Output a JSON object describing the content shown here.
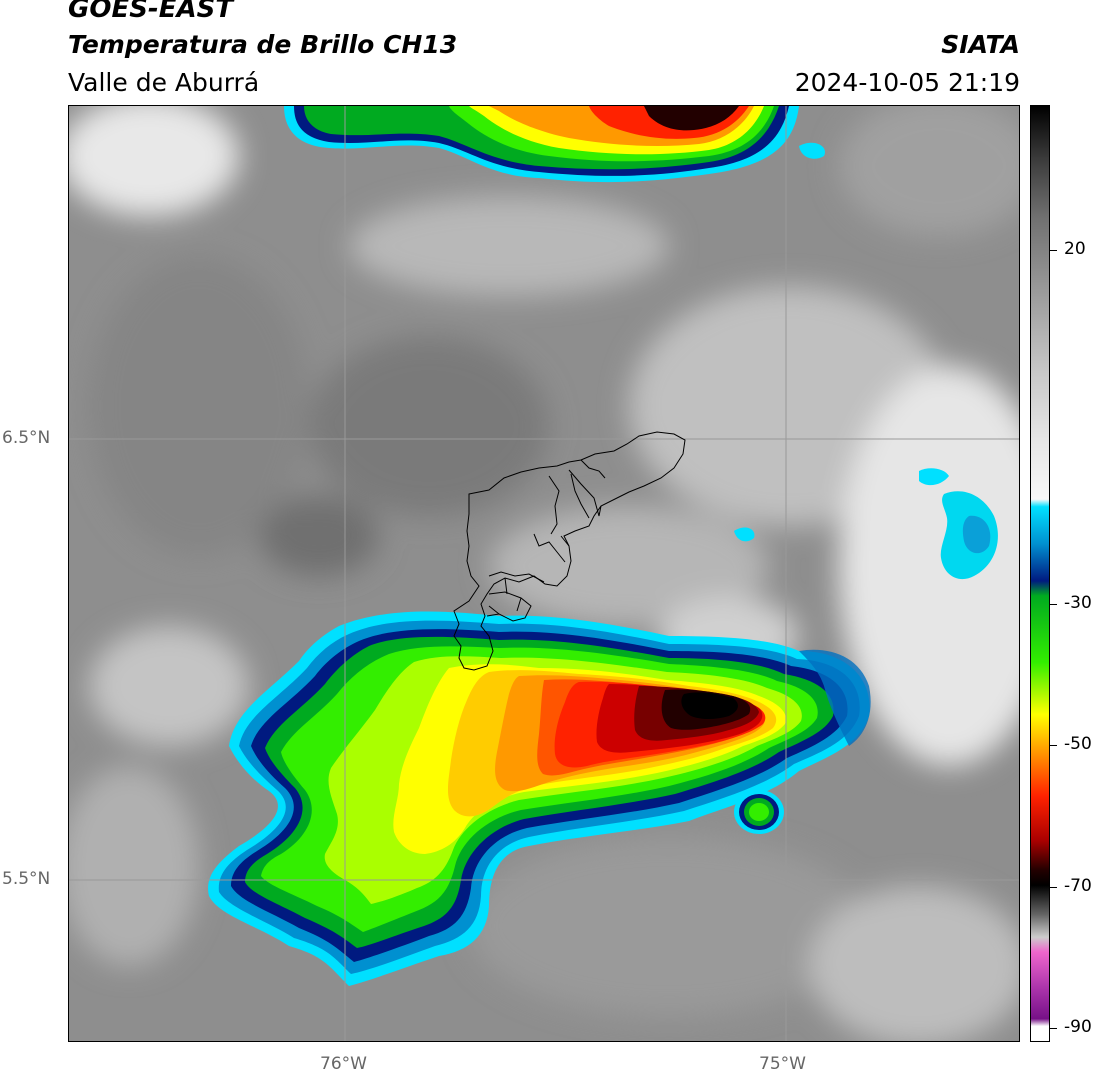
{
  "header": {
    "satellite": "GOES-EAST",
    "product": "Temperatura de Brillo CH13",
    "region": "Valle de Aburrá",
    "organization": "SIATA",
    "timestamp": "2024-10-05 21:19"
  },
  "map": {
    "lat_labels": [
      "6.5°N",
      "5.5°N"
    ],
    "lon_labels": [
      "76°W",
      "75°W"
    ],
    "gridlines": true,
    "background_colors": {
      "warm_surface": "#8a8a8a",
      "mid_cloud": "#c8c8c8",
      "grid": "#999999"
    }
  },
  "colorbar": {
    "tick_labels": [
      "20",
      "-30",
      "-50",
      "-70",
      "-90"
    ],
    "stops": [
      {
        "v": 35,
        "c": "#000000"
      },
      {
        "v": 28,
        "c": "#3a3a3a"
      },
      {
        "v": 20,
        "c": "#707070"
      },
      {
        "v": 10,
        "c": "#9a9a9a"
      },
      {
        "v": 0,
        "c": "#c4c4c4"
      },
      {
        "v": -10,
        "c": "#e6e6e6"
      },
      {
        "v": -18,
        "c": "#f8f8f8"
      },
      {
        "v": -19,
        "c": "#00e0ff"
      },
      {
        "v": -24,
        "c": "#0090d0"
      },
      {
        "v": -29,
        "c": "#001a80"
      },
      {
        "v": -31,
        "c": "#00aa20"
      },
      {
        "v": -40,
        "c": "#33ee00"
      },
      {
        "v": -47,
        "c": "#ffff00"
      },
      {
        "v": -52,
        "c": "#ff9900"
      },
      {
        "v": -58,
        "c": "#ff2200"
      },
      {
        "v": -64,
        "c": "#aa0000"
      },
      {
        "v": -68,
        "c": "#220000"
      },
      {
        "v": -70,
        "c": "#000000"
      },
      {
        "v": -74,
        "c": "#666666"
      },
      {
        "v": -77,
        "c": "#cccccc"
      },
      {
        "v": -79,
        "c": "#ee66cc"
      },
      {
        "v": -84,
        "c": "#aa33aa"
      },
      {
        "v": -88,
        "c": "#771188"
      },
      {
        "v": -89,
        "c": "#ffffff"
      },
      {
        "v": -91,
        "c": "#ffffff"
      }
    ]
  }
}
